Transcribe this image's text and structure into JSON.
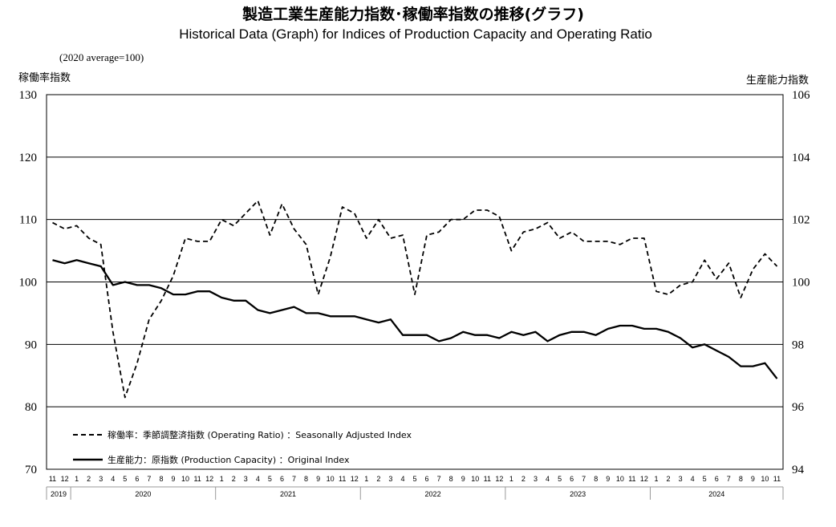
{
  "chart_data": {
    "type": "line",
    "title": "製造工業生産能力指数･稼働率指数の推移(グラフ)",
    "subtitle": "Historical Data (Graph) for Indices of Production Capacity and Operating Ratio",
    "note": "(2020 average=100)",
    "ylabel_left": "稼働率指数",
    "ylabel_right": "生産能力指数",
    "ylim_left": [
      70,
      130
    ],
    "ylim_right": [
      94,
      106
    ],
    "yticks_left": [
      "130",
      "120",
      "110",
      "100",
      "90",
      "80",
      "70"
    ],
    "yticks_right": [
      "106",
      "104",
      "102",
      "100",
      "98",
      "96",
      "94"
    ],
    "grid": true,
    "legend_position": "bottom-left",
    "months": [
      "11",
      "12",
      "1",
      "2",
      "3",
      "4",
      "5",
      "6",
      "7",
      "8",
      "9",
      "10",
      "11",
      "12",
      "1",
      "2",
      "3",
      "4",
      "5",
      "6",
      "7",
      "8",
      "9",
      "10",
      "11",
      "12",
      "1",
      "2",
      "3",
      "4",
      "5",
      "6",
      "7",
      "8",
      "9",
      "10",
      "11",
      "12",
      "1",
      "2",
      "3",
      "4",
      "5",
      "6",
      "7",
      "8",
      "9",
      "10",
      "11",
      "12",
      "1",
      "2",
      "3",
      "4",
      "5",
      "6",
      "7",
      "8",
      "9",
      "10",
      "11"
    ],
    "years": [
      {
        "label": "2019",
        "start": 0,
        "end": 1
      },
      {
        "label": "2020",
        "start": 2,
        "end": 13
      },
      {
        "label": "2021",
        "start": 14,
        "end": 25
      },
      {
        "label": "2022",
        "start": 26,
        "end": 37
      },
      {
        "label": "2023",
        "start": 38,
        "end": 49
      },
      {
        "label": "2024",
        "start": 50,
        "end": 60
      }
    ],
    "series": [
      {
        "name": "稼働率：季節調整済指数 (Operating Ratio) ：Seasonally Adjusted Index",
        "axis": "left",
        "style": "dashed",
        "values": [
          109.5,
          108.5,
          109.0,
          107.0,
          106.0,
          92.0,
          81.5,
          87.0,
          94.0,
          97.0,
          101.0,
          107.0,
          106.5,
          106.5,
          110.0,
          109.0,
          111.0,
          113.0,
          107.5,
          112.5,
          108.5,
          106.0,
          98.0,
          104.0,
          112.0,
          111.0,
          107.0,
          110.0,
          107.0,
          107.5,
          98.0,
          107.5,
          108.0,
          110.0,
          110.0,
          111.5,
          111.5,
          110.5,
          105.0,
          108.0,
          108.5,
          109.5,
          107.0,
          108.0,
          106.5,
          106.5,
          106.5,
          106.0,
          107.0,
          107.0,
          98.5,
          98.0,
          99.5,
          100.0,
          103.5,
          100.5,
          103.0,
          97.5,
          102.0,
          104.5,
          102.5
        ]
      },
      {
        "name": "生産能力：原指数 (Production Capacity) ：Original Index",
        "axis": "right",
        "style": "solid",
        "values": [
          100.7,
          100.6,
          100.7,
          100.6,
          100.5,
          99.9,
          100.0,
          99.9,
          99.9,
          99.8,
          99.6,
          99.6,
          99.7,
          99.7,
          99.5,
          99.4,
          99.4,
          99.1,
          99.0,
          99.1,
          99.2,
          99.0,
          99.0,
          98.9,
          98.9,
          98.9,
          98.8,
          98.7,
          98.8,
          98.3,
          98.3,
          98.3,
          98.1,
          98.2,
          98.4,
          98.3,
          98.3,
          98.2,
          98.4,
          98.3,
          98.4,
          98.1,
          98.3,
          98.4,
          98.4,
          98.3,
          98.5,
          98.6,
          98.6,
          98.5,
          98.5,
          98.4,
          98.2,
          97.9,
          98.0,
          97.8,
          97.6,
          97.3,
          97.3,
          97.4,
          96.9
        ]
      }
    ]
  }
}
